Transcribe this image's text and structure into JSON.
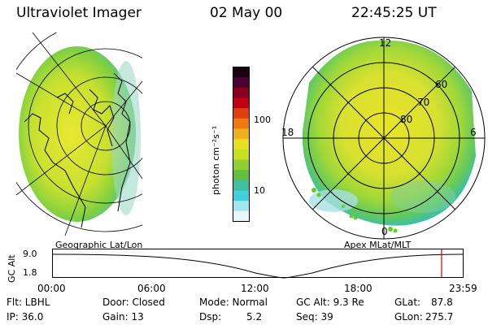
{
  "header": {
    "instrument": "Ultraviolet Imager",
    "date": "02 May 00",
    "time": "22:45:25 UT"
  },
  "colorbar": {
    "unit_label": "photon cm⁻²s⁻¹",
    "tick_labels": [
      "100",
      "10"
    ],
    "colors": [
      "#1a0010",
      "#4a0030",
      "#8a0020",
      "#c00010",
      "#e04010",
      "#f07a10",
      "#f0b020",
      "#e8e020",
      "#c8e020",
      "#90d030",
      "#60c040",
      "#40c0a0",
      "#40d0e0",
      "#a0e8f0",
      "#e8f8f8"
    ]
  },
  "left_panel": {
    "caption": "Geographic Lat/Lon"
  },
  "right_panel": {
    "caption": "Apex MLat/MLT",
    "lat_labels": [
      "60",
      "70",
      "80"
    ],
    "mlt_labels": [
      "12",
      "18",
      "6",
      "0"
    ]
  },
  "altitude_strip": {
    "axis_label": "GC Alt",
    "y_ticks": [
      "9.0",
      "1.8"
    ],
    "x_ticks": [
      "00:00",
      "06:00",
      "12:00",
      "18:00",
      "23:59"
    ],
    "marker_time_fraction": 0.9483,
    "marker_color": "#cc0000"
  },
  "info": {
    "flt": "Flt: LBHL",
    "ip": "IP: 36.0",
    "door": "Door: Closed",
    "gain": "Gain: 13",
    "mode": "Mode: Normal",
    "dsp_label": "Dsp:",
    "dsp_value": "5.2",
    "gc_alt": "GC Alt: 9.3 Re",
    "seq": "Seq: 39",
    "glat_label": "GLat:",
    "glat_value": "87.8",
    "glon_label": "GLon:",
    "glon_value": "275.7"
  }
}
